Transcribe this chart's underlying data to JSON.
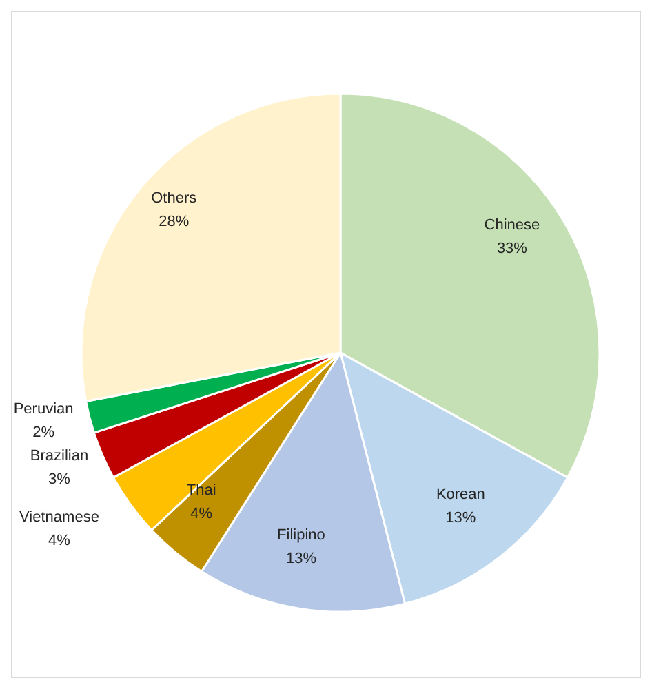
{
  "chart_data": {
    "type": "pie",
    "categories": [
      "Chinese",
      "Korean",
      "Filipino",
      "Thai",
      "Vietnamese",
      "Brazilian",
      "Peruvian",
      "Others"
    ],
    "values": [
      33,
      13,
      13,
      4,
      4,
      3,
      2,
      28
    ],
    "value_labels": [
      "33%",
      "13%",
      "13%",
      "4%",
      "4%",
      "3%",
      "2%",
      "28%"
    ],
    "colors": [
      "#c5e0b4",
      "#bdd7ee",
      "#b4c7e7",
      "#bf9000",
      "#ffc000",
      "#c00000",
      "#00b050",
      "#fff2cc"
    ],
    "legend": false
  }
}
